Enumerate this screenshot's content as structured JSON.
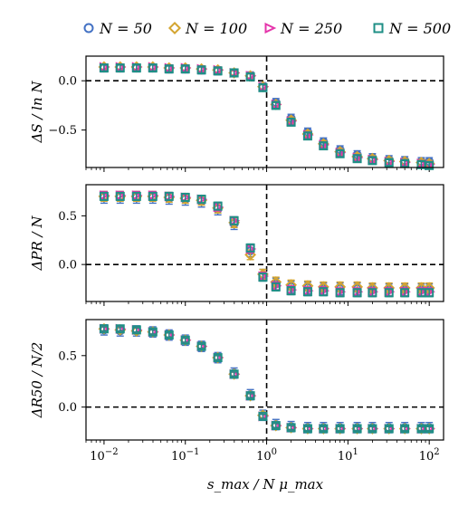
{
  "chart_data": {
    "type": "scatter",
    "xlabel": "s_max / N μ_max",
    "x_scale": "log",
    "xlim": [
      0.006,
      150
    ],
    "x_ticks": [
      0.01,
      0.1,
      1,
      10,
      100
    ],
    "x_tick_labels": [
      "10−2",
      "10−1",
      "100",
      "101",
      "102"
    ],
    "vertical_line_x": 1.0,
    "legend": {
      "placement": "top",
      "entries": [
        {
          "label": "N = 50",
          "color": "#4472c4",
          "marker": "circle"
        },
        {
          "label": "N = 100",
          "color": "#d4a531",
          "marker": "diamond"
        },
        {
          "label": "N = 250",
          "color": "#e535ab",
          "marker": "triangle-right"
        },
        {
          "label": "N = 500",
          "color": "#1f8f86",
          "marker": "square"
        }
      ]
    },
    "x": [
      0.01,
      0.0158,
      0.0251,
      0.0398,
      0.0631,
      0.1,
      0.158,
      0.251,
      0.398,
      0.631,
      0.9,
      1.3,
      2.0,
      3.2,
      5.0,
      8.0,
      13.0,
      20.0,
      32.0,
      50.0,
      80.0,
      100.0
    ],
    "panels": [
      {
        "ylabel": "ΔS / ln N",
        "ylim": [
          -0.88,
          0.25
        ],
        "y_ticks": [
          0.0,
          -0.5
        ],
        "y_tick_labels": [
          "0.0",
          "−0.5"
        ],
        "horizontal_line_y": 0.0,
        "series": [
          {
            "name": "N = 50",
            "values": [
              0.13,
              0.13,
              0.13,
              0.13,
              0.12,
              0.12,
              0.11,
              0.1,
              0.08,
              0.05,
              -0.06,
              -0.22,
              -0.38,
              -0.52,
              -0.62,
              -0.7,
              -0.75,
              -0.78,
              -0.8,
              -0.81,
              -0.82,
              -0.82
            ],
            "error": 0.04
          },
          {
            "name": "N = 100",
            "values": [
              0.14,
              0.14,
              0.14,
              0.14,
              0.13,
              0.13,
              0.12,
              0.11,
              0.08,
              0.05,
              -0.06,
              -0.24,
              -0.4,
              -0.54,
              -0.64,
              -0.72,
              -0.77,
              -0.79,
              -0.81,
              -0.82,
              -0.83,
              -0.84
            ],
            "error": 0.03
          },
          {
            "name": "N = 250",
            "values": [
              0.14,
              0.14,
              0.14,
              0.14,
              0.13,
              0.13,
              0.12,
              0.11,
              0.08,
              0.05,
              -0.06,
              -0.24,
              -0.41,
              -0.55,
              -0.65,
              -0.73,
              -0.78,
              -0.8,
              -0.82,
              -0.83,
              -0.84,
              -0.85
            ],
            "error": 0.03
          },
          {
            "name": "N = 500",
            "values": [
              0.13,
              0.13,
              0.13,
              0.13,
              0.12,
              0.12,
              0.11,
              0.1,
              0.08,
              0.04,
              -0.07,
              -0.25,
              -0.42,
              -0.56,
              -0.66,
              -0.74,
              -0.79,
              -0.81,
              -0.83,
              -0.84,
              -0.85,
              -0.86
            ],
            "error": 0.03
          }
        ]
      },
      {
        "ylabel": "ΔPR / N",
        "ylim": [
          -0.38,
          0.82
        ],
        "y_ticks": [
          0.5,
          0.0
        ],
        "y_tick_labels": [
          "0.5",
          "0.0"
        ],
        "horizontal_line_y": 0.0,
        "series": [
          {
            "name": "N = 50",
            "values": [
              0.69,
              0.69,
              0.69,
              0.69,
              0.68,
              0.67,
              0.65,
              0.57,
              0.42,
              0.14,
              -0.11,
              -0.2,
              -0.23,
              -0.24,
              -0.25,
              -0.25,
              -0.25,
              -0.26,
              -0.26,
              -0.26,
              -0.26,
              -0.26
            ],
            "error": 0.06
          },
          {
            "name": "N = 100",
            "values": [
              0.7,
              0.7,
              0.7,
              0.7,
              0.69,
              0.68,
              0.66,
              0.58,
              0.43,
              0.1,
              -0.1,
              -0.18,
              -0.21,
              -0.22,
              -0.23,
              -0.23,
              -0.23,
              -0.24,
              -0.24,
              -0.24,
              -0.24,
              -0.24
            ],
            "error": 0.05
          },
          {
            "name": "N = 250",
            "values": [
              0.71,
              0.71,
              0.71,
              0.71,
              0.7,
              0.69,
              0.67,
              0.59,
              0.45,
              0.16,
              -0.12,
              -0.22,
              -0.26,
              -0.27,
              -0.27,
              -0.28,
              -0.28,
              -0.28,
              -0.28,
              -0.28,
              -0.28,
              -0.28
            ],
            "error": 0.04
          },
          {
            "name": "N = 500",
            "values": [
              0.7,
              0.7,
              0.7,
              0.7,
              0.7,
              0.69,
              0.67,
              0.6,
              0.45,
              0.17,
              -0.13,
              -0.23,
              -0.27,
              -0.28,
              -0.28,
              -0.29,
              -0.29,
              -0.29,
              -0.29,
              -0.29,
              -0.29,
              -0.29
            ],
            "error": 0.04
          }
        ]
      },
      {
        "ylabel": "ΔR50 / N/2",
        "ylim": [
          -0.32,
          0.85
        ],
        "y_ticks": [
          0.5,
          0.0
        ],
        "y_tick_labels": [
          "0.5",
          "0.0"
        ],
        "horizontal_line_y": 0.0,
        "series": [
          {
            "name": "N = 50",
            "values": [
              0.75,
              0.74,
              0.74,
              0.73,
              0.7,
              0.65,
              0.59,
              0.48,
              0.33,
              0.12,
              -0.08,
              -0.17,
              -0.19,
              -0.2,
              -0.2,
              -0.2,
              -0.2,
              -0.2,
              -0.2,
              -0.2,
              -0.2,
              -0.2
            ],
            "error": 0.05
          },
          {
            "name": "N = 100",
            "values": [
              0.76,
              0.75,
              0.74,
              0.73,
              0.7,
              0.65,
              0.59,
              0.48,
              0.32,
              0.11,
              -0.08,
              -0.18,
              -0.2,
              -0.21,
              -0.21,
              -0.21,
              -0.21,
              -0.21,
              -0.21,
              -0.21,
              -0.21,
              -0.21
            ],
            "error": 0.03
          },
          {
            "name": "N = 250",
            "values": [
              0.76,
              0.76,
              0.75,
              0.73,
              0.7,
              0.65,
              0.59,
              0.48,
              0.32,
              0.11,
              -0.09,
              -0.18,
              -0.2,
              -0.21,
              -0.21,
              -0.21,
              -0.21,
              -0.21,
              -0.21,
              -0.21,
              -0.21,
              -0.21
            ],
            "error": 0.02
          },
          {
            "name": "N = 500",
            "values": [
              0.76,
              0.76,
              0.75,
              0.73,
              0.7,
              0.65,
              0.59,
              0.48,
              0.32,
              0.11,
              -0.09,
              -0.18,
              -0.2,
              -0.21,
              -0.21,
              -0.21,
              -0.21,
              -0.21,
              -0.21,
              -0.21,
              -0.21,
              -0.21
            ],
            "error": 0.02
          }
        ]
      }
    ]
  }
}
